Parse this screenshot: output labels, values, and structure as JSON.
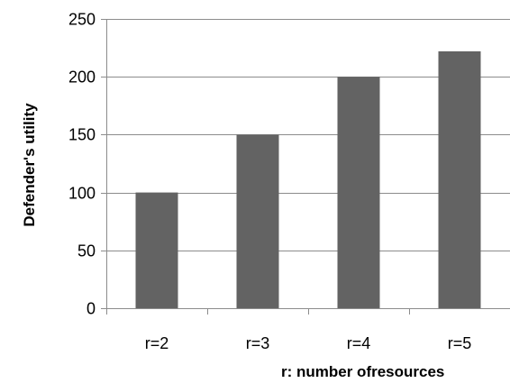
{
  "chart_data": {
    "type": "bar",
    "title": "",
    "xlabel": "r: number ofresources",
    "ylabel": "Defender's utility",
    "categories": [
      "r=2",
      "r=3",
      "r=4",
      "r=5"
    ],
    "values": [
      100,
      150,
      200,
      222
    ],
    "ylim": [
      0,
      250
    ],
    "yticks": [
      0,
      50,
      100,
      150,
      200,
      250
    ],
    "grid": true,
    "legend": "none",
    "bar_color": "#636363",
    "grid_color": "#8c8c8c",
    "axis_color": "#8c8c8c"
  }
}
